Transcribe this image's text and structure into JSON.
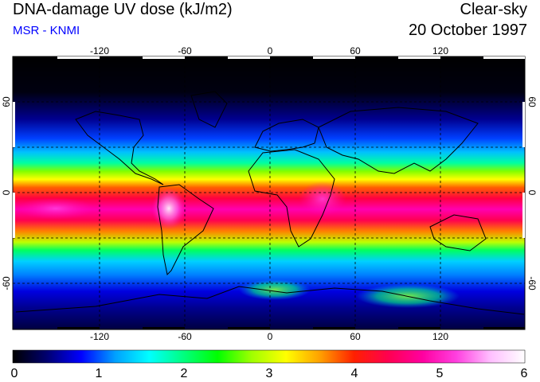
{
  "header": {
    "title": "DNA-damage UV dose (kJ/m2)",
    "source": "MSR - KNMI",
    "condition": "Clear-sky",
    "date": "20 October 1997"
  },
  "map": {
    "lon_ticks": [
      "-120",
      "-60",
      "0",
      "60",
      "120"
    ],
    "lat_ticks": [
      "60",
      "0",
      "-60"
    ]
  },
  "colorbar": {
    "labels": [
      "0",
      "1",
      "2",
      "3",
      "4",
      "5",
      "6"
    ],
    "colors": [
      "#000000",
      "#000070",
      "#0000ff",
      "#00a0ff",
      "#00ffff",
      "#00ff80",
      "#00ff00",
      "#a0ff00",
      "#ffff00",
      "#ffa000",
      "#ff2000",
      "#ff0050",
      "#ff00a0",
      "#ff40e0",
      "#ffc0ff",
      "#ffffff"
    ]
  }
}
